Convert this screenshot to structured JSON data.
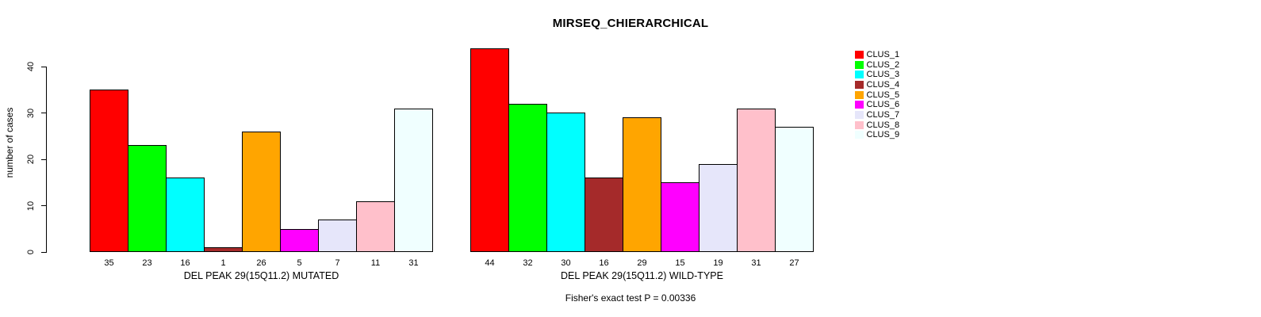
{
  "title": "MIRSEQ_CHIERARCHICAL",
  "y_axis": {
    "label": "number of cases",
    "ticks": [
      0,
      10,
      20,
      30,
      40
    ]
  },
  "footer": "Fisher's exact test P = 0.00336",
  "legend": {
    "position": "outside-right",
    "entries": [
      {
        "label": "CLUS_1",
        "color": "#FF0000"
      },
      {
        "label": "CLUS_2",
        "color": "#00FF00"
      },
      {
        "label": "CLUS_3",
        "color": "#00FFFF"
      },
      {
        "label": "CLUS_4",
        "color": "#A52A2A"
      },
      {
        "label": "CLUS_5",
        "color": "#FFA500"
      },
      {
        "label": "CLUS_6",
        "color": "#FF00FF"
      },
      {
        "label": "CLUS_7",
        "color": "#E6E6FA"
      },
      {
        "label": "CLUS_8",
        "color": "#FFC0CB"
      },
      {
        "label": "CLUS_9",
        "color": "#F0FFFF"
      }
    ]
  },
  "chart_data": [
    {
      "type": "bar",
      "xlabel": "DEL PEAK 29(15Q11.2) MUTATED",
      "ylabel": "number of cases",
      "ylim": [
        0,
        44
      ],
      "grid": false,
      "categories": [
        "CLUS_1",
        "CLUS_2",
        "CLUS_3",
        "CLUS_4",
        "CLUS_5",
        "CLUS_6",
        "CLUS_7",
        "CLUS_8",
        "CLUS_9"
      ],
      "values": [
        35,
        23,
        16,
        1,
        26,
        5,
        7,
        11,
        31
      ],
      "colors": [
        "#FF0000",
        "#00FF00",
        "#00FFFF",
        "#A52A2A",
        "#FFA500",
        "#FF00FF",
        "#E6E6FA",
        "#FFC0CB",
        "#F0FFFF"
      ]
    },
    {
      "type": "bar",
      "xlabel": "DEL PEAK 29(15Q11.2) WILD-TYPE",
      "ylabel": "number of cases",
      "ylim": [
        0,
        44
      ],
      "grid": false,
      "categories": [
        "CLUS_1",
        "CLUS_2",
        "CLUS_3",
        "CLUS_4",
        "CLUS_5",
        "CLUS_6",
        "CLUS_7",
        "CLUS_8",
        "CLUS_9"
      ],
      "values": [
        44,
        32,
        30,
        16,
        29,
        15,
        19,
        31,
        27
      ],
      "colors": [
        "#FF0000",
        "#00FF00",
        "#00FFFF",
        "#A52A2A",
        "#FFA500",
        "#FF00FF",
        "#E6E6FA",
        "#FFC0CB",
        "#F0FFFF"
      ]
    }
  ]
}
